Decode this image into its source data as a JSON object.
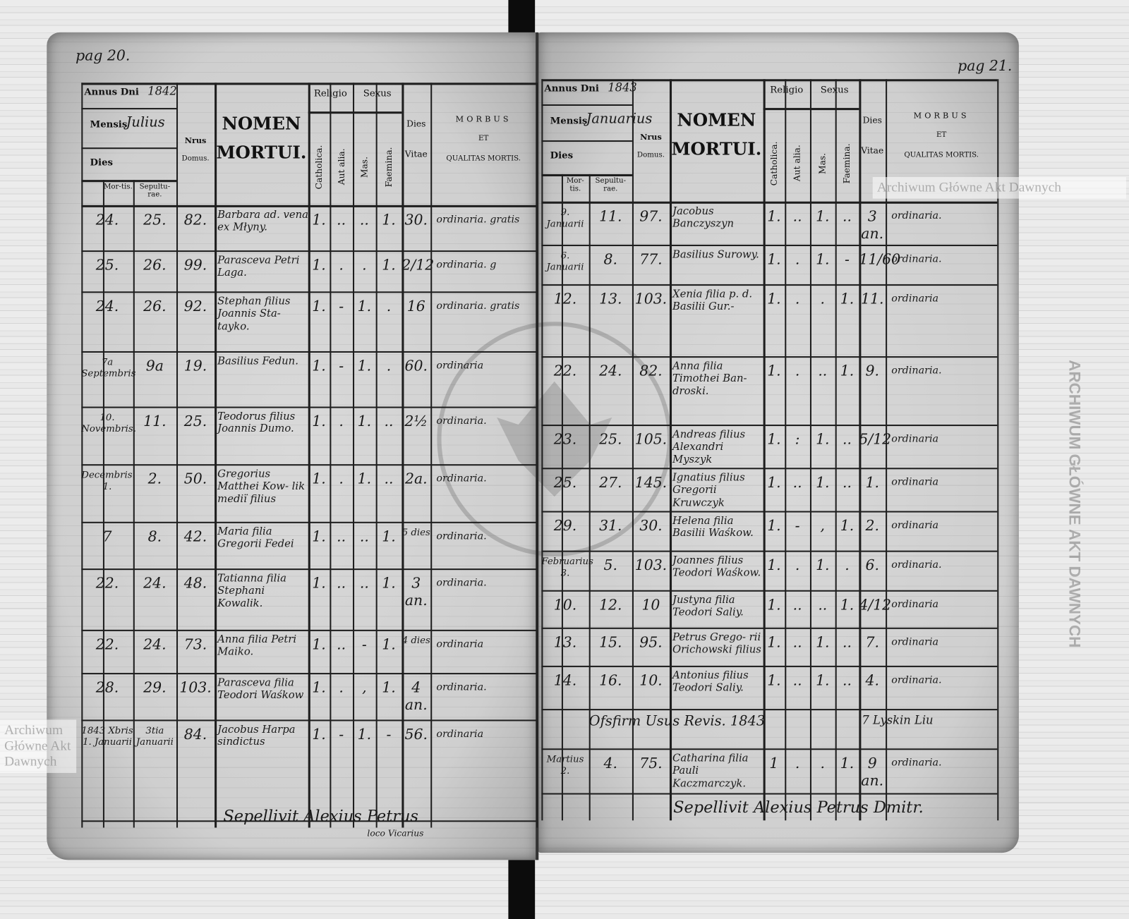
{
  "left_page": {
    "page_label": "pag 20.",
    "header": {
      "annus_label": "Annus Dni",
      "year": "1842",
      "mensis_label": "Mensis",
      "month": "Julius",
      "dies_label": "Dies",
      "mortis": "Mor-tis.",
      "sepulturae": "Sepultu-rae.",
      "nrus": "Nrus",
      "domus": "Domus.",
      "nomen": "NOMEN",
      "mortui": "MORTUI.",
      "religio": "Religio",
      "catholica": "Catholica.",
      "aut_alia": "Aut alia.",
      "sexus": "Sexus",
      "mas": "Mas.",
      "faemina": "Faemina.",
      "dies": "Dies",
      "vitae": "Vitae",
      "morbus": "MORBUS",
      "et": "ET",
      "qualitas": "QUALITAS MORTIS."
    },
    "rows": [
      {
        "mortis": "24.",
        "sepulturae": "25.",
        "nrus": "82.",
        "nomen": "Barbara ad. vena ex Młyny.",
        "catholica": "1.",
        "aut_alia": "..",
        "mas": "..",
        "faemina": "1.",
        "dies_vitae": "30.",
        "morbus": "ordinaria. gratis"
      },
      {
        "mortis": "25.",
        "sepulturae": "26.",
        "nrus": "99.",
        "nomen": "Parasceva Petri Laga.",
        "catholica": "1.",
        "aut_alia": ".",
        "mas": ".",
        "faemina": "1.",
        "dies_vitae": "2/12",
        "morbus": "ordinaria. g"
      },
      {
        "mortis": "24.",
        "sepulturae": "26.",
        "nrus": "92.",
        "nomen": "Stephan filius Joannis Sta- tayko.",
        "catholica": "1.",
        "aut_alia": "-",
        "mas": "1.",
        "faemina": ".",
        "dies_vitae": "16",
        "morbus": "ordinaria. gratis"
      },
      {
        "mortis": "7a Septembris",
        "sepulturae": "9a",
        "nrus": "19.",
        "nomen": "Basilius Fedun.",
        "catholica": "1.",
        "aut_alia": "-",
        "mas": "1.",
        "faemina": ".",
        "dies_vitae": "60.",
        "morbus": "ordinaria"
      },
      {
        "mortis": "10. Novembris.",
        "sepulturae": "11.",
        "nrus": "25.",
        "nomen": "Teodorus filius Joannis Dumo.",
        "catholica": "1.",
        "aut_alia": ".",
        "mas": "1.",
        "faemina": "..",
        "dies_vitae": "2½",
        "morbus": "ordinaria."
      },
      {
        "mortis": "Decembris. 1.",
        "sepulturae": "2.",
        "nrus": "50.",
        "nomen": "Gregorius Matthei Kow- lik mediï filius",
        "catholica": "1.",
        "aut_alia": ".",
        "mas": "1.",
        "faemina": "..",
        "dies_vitae": "2a.",
        "morbus": "ordinaria."
      },
      {
        "mortis": "7",
        "sepulturae": "8.",
        "nrus": "42.",
        "nomen": "Maria filia Gregorii Fedei",
        "catholica": "1.",
        "aut_alia": "..",
        "mas": "..",
        "faemina": "1.",
        "dies_vitae": "5 dies",
        "morbus": "ordinaria."
      },
      {
        "mortis": "22.",
        "sepulturae": "24.",
        "nrus": "48.",
        "nomen": "Tatianna filia Stephani Kowalik.",
        "catholica": "1.",
        "aut_alia": "..",
        "mas": "..",
        "faemina": "1.",
        "dies_vitae": "3 an.",
        "morbus": "ordinaria."
      },
      {
        "mortis": "22.",
        "sepulturae": "24.",
        "nrus": "73.",
        "nomen": "Anna filia Petri Maiko.",
        "catholica": "1.",
        "aut_alia": "..",
        "mas": "-",
        "faemina": "1.",
        "dies_vitae": "4 dies",
        "morbus": "ordinaria"
      },
      {
        "mortis": "28.",
        "sepulturae": "29.",
        "nrus": "103.",
        "nomen": "Parasceva filia Teodori Waśkow",
        "catholica": "1.",
        "aut_alia": ".",
        "mas": ",",
        "faemina": "1.",
        "dies_vitae": "4 an.",
        "morbus": "ordinaria."
      },
      {
        "mortis": "1843 Xbris 1. Januarii",
        "sepulturae": "3tia Januarii",
        "nrus": "84.",
        "nomen": "Jacobus Harpa sindictus",
        "catholica": "1.",
        "aut_alia": "-",
        "mas": "1.",
        "faemina": "-",
        "dies_vitae": "56.",
        "morbus": "ordinaria"
      }
    ],
    "signature": "Sepellivit Alexius Petrus",
    "signature_sub": "loco Vicarius"
  },
  "right_page": {
    "page_label": "pag 21.",
    "header": {
      "annus_label": "Annus Dni",
      "year": "1843",
      "mensis_label": "Mensis",
      "month": "Januarius",
      "dies_label": "Dies",
      "mortis": "Mor-tis.",
      "sepulturae": "Sepultu-rae.",
      "nrus": "Nrus",
      "domus": "Domus.",
      "nomen": "NOMEN",
      "mortui": "MORTUI.",
      "religio": "Religio",
      "catholica": "Catholica.",
      "aut_alia": "Aut alia.",
      "sexus": "Sexus",
      "mas": "Mas.",
      "faemina": "Faemina.",
      "dies": "Dies",
      "vitae": "Vitae",
      "morbus": "MORBUS",
      "et": "ET",
      "qualitas": "QUALITAS MORTIS."
    },
    "rows": [
      {
        "mortis": "9. Januarii",
        "sepulturae": "11.",
        "nrus": "97.",
        "nomen": "Jacobus Banczyszyn",
        "catholica": "1.",
        "aut_alia": "..",
        "mas": "1.",
        "faemina": "..",
        "dies_vitae": "3 an.",
        "morbus": "ordinaria."
      },
      {
        "mortis": "6. Januarii",
        "sepulturae": "8.",
        "nrus": "77.",
        "nomen": "Basilius Surowy.",
        "catholica": "1.",
        "aut_alia": ".",
        "mas": "1.",
        "faemina": "-",
        "dies_vitae": "11/60",
        "morbus": "ordinaria."
      },
      {
        "mortis": "12.",
        "sepulturae": "13.",
        "nrus": "103.",
        "nomen": "Xenia filia p. d. Basilii Gur.-",
        "catholica": "1.",
        "aut_alia": ".",
        "mas": ".",
        "faemina": "1.",
        "dies_vitae": "11.",
        "morbus": "ordinaria"
      },
      {
        "mortis": "22.",
        "sepulturae": "24.",
        "nrus": "82.",
        "nomen": "Anna filia Timothei Ban- droski.",
        "catholica": "1.",
        "aut_alia": ".",
        "mas": "..",
        "faemina": "1.",
        "dies_vitae": "9.",
        "morbus": "ordinaria."
      },
      {
        "mortis": "23.",
        "sepulturae": "25.",
        "nrus": "105.",
        "nomen": "Andreas filius Alexandri Myszyk",
        "catholica": "1.",
        "aut_alia": ":",
        "mas": "1.",
        "faemina": "..",
        "dies_vitae": "5/12",
        "morbus": "ordinaria"
      },
      {
        "mortis": "25.",
        "sepulturae": "27.",
        "nrus": "145.",
        "nomen": "Ignatius filius Gregorii Kruwczyk",
        "catholica": "1.",
        "aut_alia": "..",
        "mas": "1.",
        "faemina": "..",
        "dies_vitae": "1.",
        "morbus": "ordinaria"
      },
      {
        "mortis": "29.",
        "sepulturae": "31.",
        "nrus": "30.",
        "nomen": "Helena filia Basilii Waśkow.",
        "catholica": "1.",
        "aut_alia": "-",
        "mas": ",",
        "faemina": "1.",
        "dies_vitae": "2.",
        "morbus": "ordinaria"
      },
      {
        "mortis": "Februarius 3.",
        "sepulturae": "5.",
        "nrus": "103.",
        "nomen": "Joannes filius Teodori Waśkow.",
        "catholica": "1.",
        "aut_alia": ".",
        "mas": "1.",
        "faemina": ".",
        "dies_vitae": "6.",
        "morbus": "ordinaria."
      },
      {
        "mortis": "10.",
        "sepulturae": "12.",
        "nrus": "10",
        "nomen": "Justyna filia Teodori Saliy.",
        "catholica": "1.",
        "aut_alia": "..",
        "mas": "..",
        "faemina": "1.",
        "dies_vitae": "4/12",
        "morbus": "ordinaria"
      },
      {
        "mortis": "13.",
        "sepulturae": "15.",
        "nrus": "95.",
        "nomen": "Petrus Grego- rii Orichowski filius",
        "catholica": "1.",
        "aut_alia": "..",
        "mas": "1.",
        "faemina": "..",
        "dies_vitae": "7.",
        "morbus": "ordinaria"
      },
      {
        "mortis": "14.",
        "sepulturae": "16.",
        "nrus": "10.",
        "nomen": "Antonius filius Teodori Saliy.",
        "catholica": "1.",
        "aut_alia": "..",
        "mas": "1.",
        "faemina": "..",
        "dies_vitae": "4.",
        "morbus": "ordinaria."
      },
      {
        "note": "Ofsfirm Usus Revis. 1843",
        "note_right": "7 Lyskin Liu"
      },
      {
        "mortis": "Martius 2.",
        "sepulturae": "4.",
        "nrus": "75.",
        "nomen": "Catharina filia Pauli Kaczmarczyk.",
        "catholica": "1",
        "aut_alia": ".",
        "mas": ".",
        "faemina": "1.",
        "dies_vitae": "9 an.",
        "morbus": "ordinaria."
      }
    ],
    "signature": "Sepellivit Alexius Petrus Dmitr."
  },
  "watermark": {
    "text": "Archiwum Główne Akt Dawnych",
    "seal_text": "ARCHIWUM GŁÓWNE AKT DAWNYCH"
  }
}
